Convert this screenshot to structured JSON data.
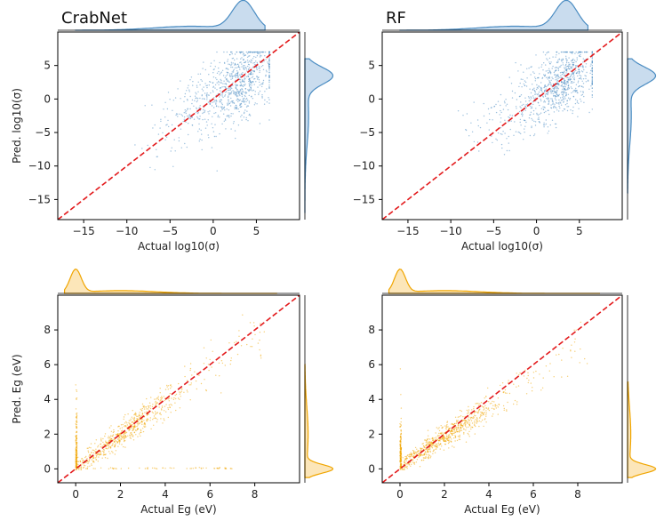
{
  "chart_data": [
    {
      "type": "scatter",
      "title": "CrabNet",
      "xlabel": "Actual log10(σ)",
      "ylabel": "Pred. log10(σ)",
      "xlim": [
        -18,
        10
      ],
      "ylim": [
        -18,
        10
      ],
      "xticks": [
        -15,
        -10,
        -5,
        0,
        5
      ],
      "yticks": [
        -15,
        -10,
        -5,
        0,
        5
      ],
      "color": "#4a8cc2",
      "fill": "#bcd3ea",
      "parity_line": {
        "from": [
          -18,
          -18
        ],
        "to": [
          10,
          10
        ],
        "color": "#e31a1c"
      },
      "cloud": {
        "x_center": 1.5,
        "slope": 0.75,
        "intercept": 0.2,
        "spread": 2.8
      },
      "marginal_x": {
        "mode": 3.5,
        "range": [
          -16,
          6
        ]
      },
      "marginal_y": {
        "mode": 3.5,
        "range": [
          -17,
          6
        ]
      }
    },
    {
      "type": "scatter",
      "title": "RF",
      "xlabel": "Actual log10(σ)",
      "ylabel": "",
      "xlim": [
        -18,
        10
      ],
      "ylim": [
        -18,
        10
      ],
      "xticks": [
        -15,
        -10,
        -5,
        0,
        5
      ],
      "yticks": [
        -15,
        -10,
        -5,
        0,
        5
      ],
      "color": "#4a8cc2",
      "fill": "#bcd3ea",
      "parity_line": {
        "from": [
          -18,
          -18
        ],
        "to": [
          10,
          10
        ],
        "color": "#e31a1c"
      },
      "cloud": {
        "x_center": 1.5,
        "slope": 0.7,
        "intercept": 0.3,
        "spread": 2.6
      },
      "marginal_x": {
        "mode": 3.5,
        "range": [
          -16,
          6
        ]
      },
      "marginal_y": {
        "mode": 3.5,
        "range": [
          -14,
          6
        ]
      }
    },
    {
      "type": "scatter",
      "title": "",
      "xlabel": "Actual Eg (eV)",
      "ylabel": "Pred. Eg (eV)",
      "xlim": [
        -0.8,
        10
      ],
      "ylim": [
        -0.8,
        10
      ],
      "xticks": [
        0,
        2,
        4,
        6,
        8
      ],
      "yticks": [
        0,
        2,
        4,
        6,
        8
      ],
      "color": "#f0a500",
      "fill": "#fbe0a8",
      "parity_line": {
        "from": [
          -0.8,
          -0.8
        ],
        "to": [
          10,
          10
        ],
        "color": "#e31a1c"
      },
      "cloud": {
        "x_center": 2.2,
        "slope": 0.95,
        "intercept": 0.05,
        "spread": 0.45
      },
      "marginal_x": {
        "mode": 0.0,
        "range": [
          -0.5,
          9
        ]
      },
      "marginal_y": {
        "mode": 0.0,
        "range": [
          -0.5,
          6
        ]
      }
    },
    {
      "type": "scatter",
      "title": "",
      "xlabel": "Actual Eg (eV)",
      "ylabel": "",
      "xlim": [
        -0.8,
        10
      ],
      "ylim": [
        -0.8,
        10
      ],
      "xticks": [
        0,
        2,
        4,
        6,
        8
      ],
      "yticks": [
        0,
        2,
        4,
        6,
        8
      ],
      "color": "#f0a500",
      "fill": "#fbe0a8",
      "parity_line": {
        "from": [
          -0.8,
          -0.8
        ],
        "to": [
          10,
          10
        ],
        "color": "#e31a1c"
      },
      "cloud": {
        "x_center": 2.0,
        "slope": 0.85,
        "intercept": 0.15,
        "spread": 0.4
      },
      "marginal_x": {
        "mode": 0.0,
        "range": [
          -0.5,
          9
        ]
      },
      "marginal_y": {
        "mode": 0.0,
        "range": [
          -0.5,
          5
        ]
      }
    }
  ]
}
